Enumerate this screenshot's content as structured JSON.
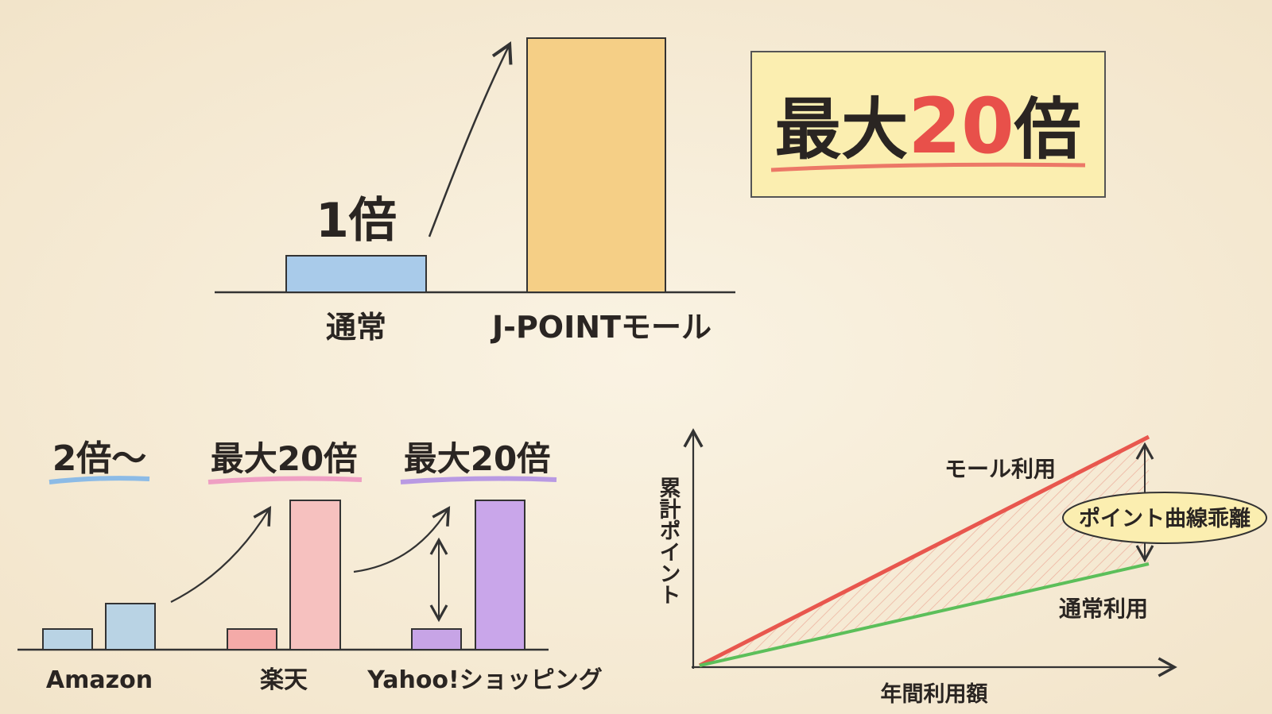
{
  "top_comparison": {
    "normal_label": "1倍",
    "categories": [
      "通常",
      "J-POINTモール"
    ]
  },
  "badge": {
    "prefix": "最大",
    "number": "20",
    "suffix": "倍"
  },
  "mall_comparison": {
    "labels": [
      "2倍〜",
      "最大20倍",
      "最大20倍"
    ],
    "categories": [
      "Amazon",
      "楽天",
      "Yahoo!ショッピング"
    ]
  },
  "line_chart": {
    "y_label": "累計ポイント",
    "x_label": "年間利用額",
    "series": [
      "モール利用",
      "通常利用"
    ],
    "annotation": "ポイント曲線乖離"
  }
}
